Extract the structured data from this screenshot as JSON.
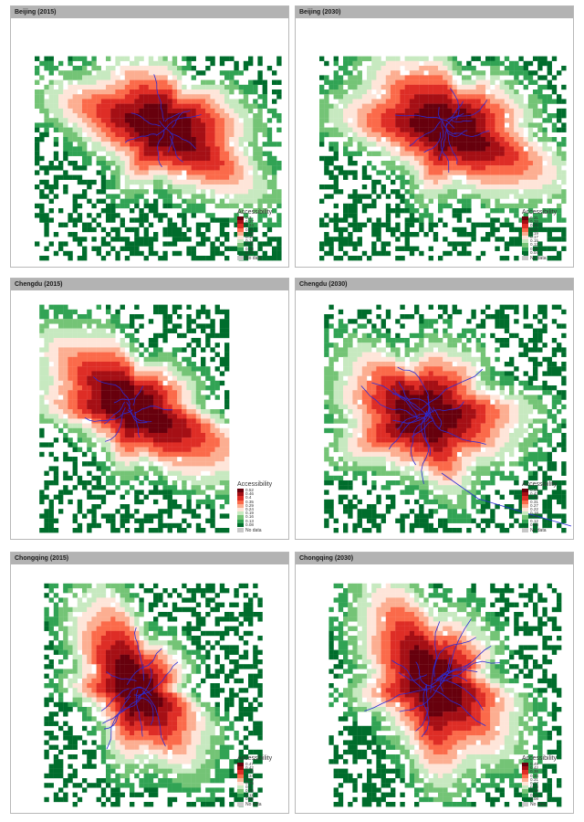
{
  "colors": {
    "ramp": [
      "#67000d",
      "#a50f15",
      "#de2d26",
      "#fb6a4a",
      "#fcae91",
      "#fee5d9",
      "#c7e9c0",
      "#74c476",
      "#31a354",
      "#006d2c"
    ],
    "network": "#2b2bd6",
    "nodata": "#c8c8c8",
    "strip": "#b3b3b3"
  },
  "panels": [
    {
      "title": "Beijing (2015)",
      "legend_title": "Accessibility",
      "nodata_label": "No data",
      "breaks": [
        "0.3",
        "0.27",
        "0.24",
        "0.21",
        "0.18",
        "0.16",
        "0.14",
        "0.11",
        "0.08",
        "0.03"
      ]
    },
    {
      "title": "Beijing (2030)",
      "legend_title": "Accessibility",
      "nodata_label": "No data",
      "breaks": [
        "0.31",
        "0.28",
        "0.25",
        "0.22",
        "0.19",
        "0.17",
        "0.15",
        "0.12",
        "0.08",
        "0.04"
      ]
    },
    {
      "title": "Chengdu (2015)",
      "legend_title": "Accessibility",
      "nodata_label": "No data",
      "breaks": [
        "0.52",
        "0.46",
        "0.4",
        "0.35",
        "0.29",
        "0.24",
        "0.19",
        "0.16",
        "0.13",
        "0.08"
      ]
    },
    {
      "title": "Chengdu (2030)",
      "legend_title": "Accessibility",
      "nodata_label": "No data",
      "breaks": [
        "0.49",
        "0.43",
        "0.36",
        "0.31",
        "0.27",
        "0.22",
        "0.18",
        "0.15",
        "0.12",
        "0.08"
      ]
    },
    {
      "title": "Chongqing (2015)",
      "legend_title": "Accessibility",
      "nodata_label": "No data",
      "breaks": [
        "0.47",
        "0.42",
        "0.38",
        "0.34",
        "0.29",
        "0.25",
        "0.2",
        "0.15",
        "0.11",
        "0.08"
      ]
    },
    {
      "title": "Chongqing (2030)",
      "legend_title": "Accessibility",
      "nodata_label": "No data",
      "breaks": [
        "0.49",
        "0.42",
        "0.38",
        "0.34",
        "0.31",
        "0.27",
        "0.23",
        "0.19",
        "0.13",
        "0.08"
      ]
    }
  ]
}
